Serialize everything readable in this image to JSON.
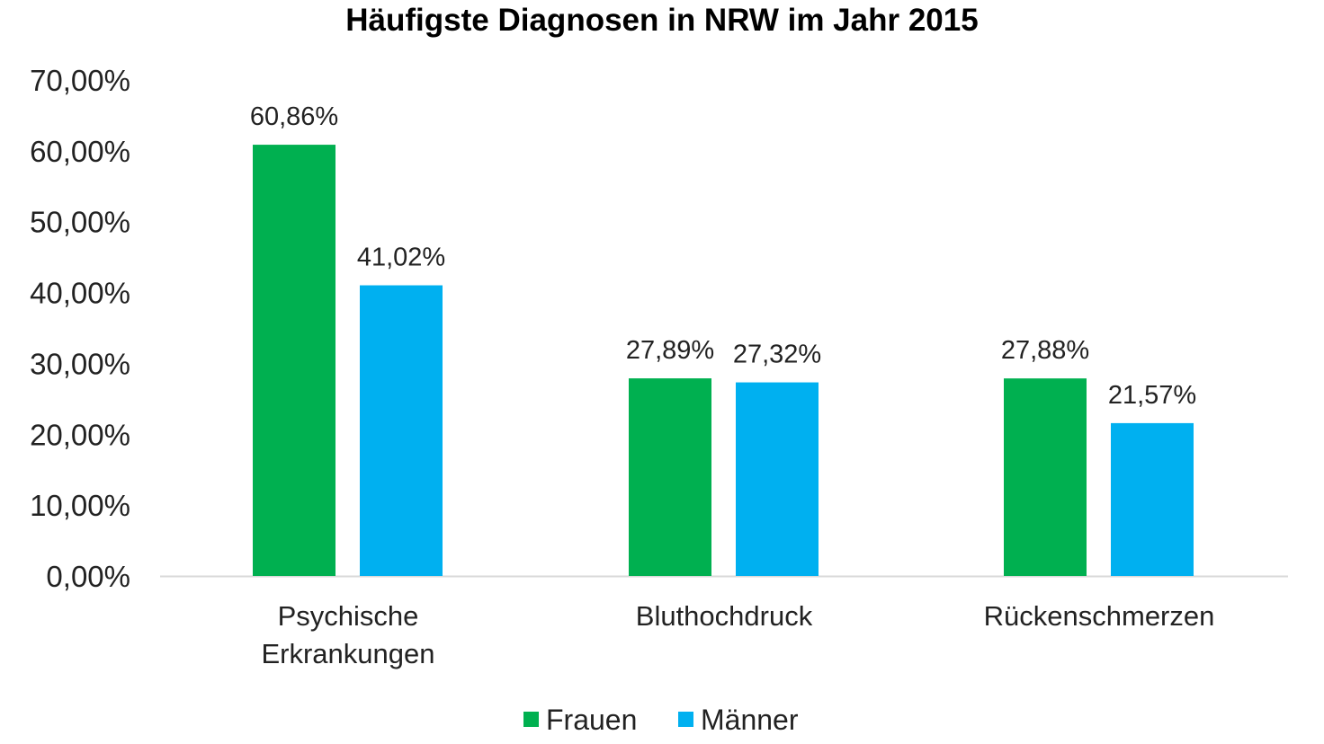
{
  "chart_data": {
    "type": "bar",
    "title": "Häufigste Diagnosen in NRW im Jahr 2015",
    "xlabel": "",
    "ylabel": "",
    "ylim": [
      0,
      70
    ],
    "yticks": [
      "0,00%",
      "10,00%",
      "20,00%",
      "30,00%",
      "40,00%",
      "50,00%",
      "60,00%",
      "70,00%"
    ],
    "categories": [
      [
        "Psychische",
        "Erkrankungen"
      ],
      [
        "Bluthochdruck"
      ],
      [
        "Rückenschmerzen"
      ]
    ],
    "series": [
      {
        "name": "Frauen",
        "color": "#00B050",
        "values": [
          60.86,
          27.89,
          27.88
        ],
        "labels": [
          "60,86%",
          "27,89%",
          "27,88%"
        ]
      },
      {
        "name": "Männer",
        "color": "#00B0F0",
        "values": [
          41.02,
          27.32,
          21.57
        ],
        "labels": [
          "41,02%",
          "27,32%",
          "21,57%"
        ]
      }
    ],
    "grid": false,
    "legend": "bottom"
  }
}
